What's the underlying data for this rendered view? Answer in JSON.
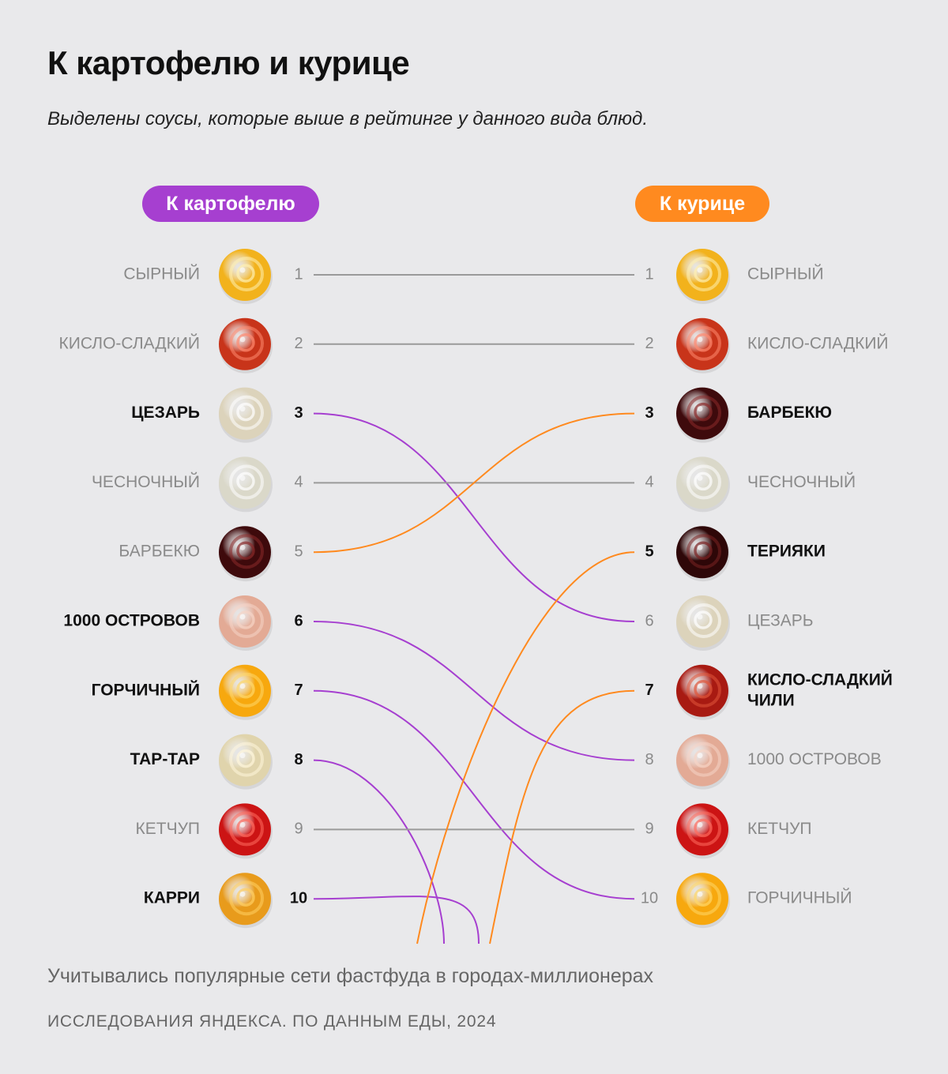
{
  "title": "К картофелю и курице",
  "subtitle": "Выделены соусы, которые выше в рейтинге у данного вида блюд.",
  "footnote": "Учитывались популярные сети фастфуда в городах-миллионерах",
  "source": "ИССЛЕДОВАНИЯ ЯНДЕКСА. ПО ДАННЫМ ЕДЫ, 2024",
  "colors": {
    "background": "#e9e9eb",
    "potato_accent": "#a63fd0",
    "chicken_accent": "#ff8a1f",
    "neutral_line": "#9a9a9a",
    "muted_text": "#8a8a8a",
    "strong_text": "#111111"
  },
  "chart_data": {
    "type": "slope",
    "left_column": {
      "label": "К картофелю",
      "items": [
        {
          "rank": 1,
          "name": "СЫРНЫЙ",
          "highlighted": false,
          "sauce_icon": "cheese-sauce-icon",
          "color": "#f2b21c",
          "swirl": "#fff0b0"
        },
        {
          "rank": 2,
          "name": "КИСЛО-СЛАДКИЙ",
          "highlighted": false,
          "sauce_icon": "sweet-sour-sauce-icon",
          "color": "#c8341a",
          "swirl": "#ff8a70"
        },
        {
          "rank": 3,
          "name": "ЦЕЗАРЬ",
          "highlighted": true,
          "sauce_icon": "caesar-sauce-icon",
          "color": "#dcd3bb",
          "swirl": "#ffffff"
        },
        {
          "rank": 4,
          "name": "ЧЕСНОЧНЫЙ",
          "highlighted": false,
          "sauce_icon": "garlic-sauce-icon",
          "color": "#dad8c9",
          "swirl": "#ffffff"
        },
        {
          "rank": 5,
          "name": "БАРБЕКЮ",
          "highlighted": false,
          "sauce_icon": "bbq-sauce-icon",
          "color": "#3e0a0c",
          "swirl": "#8a2a2a"
        },
        {
          "rank": 6,
          "name": "1000 ОСТРОВОВ",
          "highlighted": true,
          "sauce_icon": "thousand-islands-sauce-icon",
          "color": "#e3aa95",
          "swirl": "#f6d4c6"
        },
        {
          "rank": 7,
          "name": "ГОРЧИЧНЫЙ",
          "highlighted": true,
          "sauce_icon": "mustard-sauce-icon",
          "color": "#f7a80e",
          "swirl": "#ffd768"
        },
        {
          "rank": 8,
          "name": "ТАР-ТАР",
          "highlighted": true,
          "sauce_icon": "tartar-sauce-icon",
          "color": "#e0d4ac",
          "swirl": "#fff6dc"
        },
        {
          "rank": 9,
          "name": "КЕТЧУП",
          "highlighted": false,
          "sauce_icon": "ketchup-icon",
          "color": "#cc1414",
          "swirl": "#ff6b5e"
        },
        {
          "rank": 10,
          "name": "КАРРИ",
          "highlighted": true,
          "sauce_icon": "curry-sauce-icon",
          "color": "#e89b1c",
          "swirl": "#ffcf63"
        }
      ]
    },
    "right_column": {
      "label": "К курице",
      "items": [
        {
          "rank": 1,
          "name": "СЫРНЫЙ",
          "highlighted": false,
          "sauce_icon": "cheese-sauce-icon",
          "color": "#f2b21c",
          "swirl": "#fff0b0"
        },
        {
          "rank": 2,
          "name": "КИСЛО-СЛАДКИЙ",
          "highlighted": false,
          "sauce_icon": "sweet-sour-sauce-icon",
          "color": "#c8341a",
          "swirl": "#ff8a70"
        },
        {
          "rank": 3,
          "name": "БАРБЕКЮ",
          "highlighted": true,
          "sauce_icon": "bbq-sauce-icon",
          "color": "#3e0a0c",
          "swirl": "#8a2a2a"
        },
        {
          "rank": 4,
          "name": "ЧЕСНОЧНЫЙ",
          "highlighted": false,
          "sauce_icon": "garlic-sauce-icon",
          "color": "#dad8c9",
          "swirl": "#ffffff"
        },
        {
          "rank": 5,
          "name": "ТЕРИЯКИ",
          "highlighted": true,
          "sauce_icon": "teriyaki-sauce-icon",
          "color": "#2e0708",
          "swirl": "#7a2222"
        },
        {
          "rank": 6,
          "name": "ЦЕЗАРЬ",
          "highlighted": false,
          "sauce_icon": "caesar-sauce-icon",
          "color": "#dcd3bb",
          "swirl": "#ffffff"
        },
        {
          "rank": 7,
          "name_lines": [
            "КИСЛО-СЛАДКИЙ",
            "ЧИЛИ"
          ],
          "highlighted": true,
          "sauce_icon": "sweet-chili-sauce-icon",
          "color": "#a81a12",
          "swirl": "#e0553a"
        },
        {
          "rank": 8,
          "name": "1000 ОСТРОВОВ",
          "highlighted": false,
          "sauce_icon": "thousand-islands-sauce-icon",
          "color": "#e3aa95",
          "swirl": "#f6d4c6"
        },
        {
          "rank": 9,
          "name": "КЕТЧУП",
          "highlighted": false,
          "sauce_icon": "ketchup-icon",
          "color": "#cc1414",
          "swirl": "#ff6b5e"
        },
        {
          "rank": 10,
          "name": "ГОРЧИЧНЫЙ",
          "highlighted": false,
          "sauce_icon": "mustard-sauce-icon",
          "color": "#f7a80e",
          "swirl": "#ffd768"
        }
      ]
    },
    "links": [
      {
        "from_rank": 1,
        "to_rank": 1,
        "kind": "same"
      },
      {
        "from_rank": 2,
        "to_rank": 2,
        "kind": "same"
      },
      {
        "from_rank": 3,
        "to_rank": 6,
        "kind": "potato"
      },
      {
        "from_rank": 4,
        "to_rank": 4,
        "kind": "same"
      },
      {
        "from_rank": 5,
        "to_rank": 3,
        "kind": "chicken"
      },
      {
        "from_rank": 6,
        "to_rank": 8,
        "kind": "potato"
      },
      {
        "from_rank": 7,
        "to_rank": 10,
        "kind": "potato"
      },
      {
        "from_rank": 8,
        "to_rank": null,
        "kind": "potato"
      },
      {
        "from_rank": 9,
        "to_rank": 9,
        "kind": "same"
      },
      {
        "from_rank": 10,
        "to_rank": null,
        "kind": "potato"
      },
      {
        "from_rank": null,
        "to_rank": 5,
        "kind": "chicken"
      },
      {
        "from_rank": null,
        "to_rank": 7,
        "kind": "chicken"
      }
    ]
  }
}
